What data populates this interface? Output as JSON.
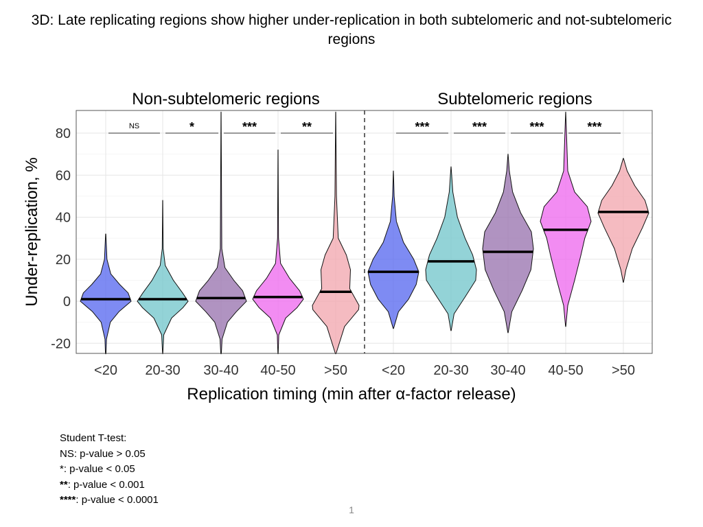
{
  "slide": {
    "title": "3D: Late replicating regions show higher under-replication in both subtelomeric and not-subtelomeric regions",
    "page_number": "1"
  },
  "legend_note": {
    "heading": "Student T-test:",
    "lines": [
      {
        "symbol": "NS",
        "text": ": p-value > 0.05"
      },
      {
        "symbol": "*",
        "text": ": p-value < 0.05"
      },
      {
        "symbol": "**",
        "text": ": p-value < 0.001"
      },
      {
        "symbol": "****",
        "text": ": p-value < 0.0001"
      }
    ]
  },
  "colors": {
    "<20": "#5a6af0",
    "20-30": "#74c7cc",
    "30-40": "#9a74b0",
    "40-50": "#ee6cee",
    "50+": "#f2a8b0",
    "median": "#000000",
    "grid": "#e6e6e6"
  },
  "chart_data": {
    "type": "violin",
    "xlabel": "Replication timing (min after α-factor release)",
    "ylabel": "Under-replication, %",
    "ylim": [
      -25,
      90
    ],
    "yticks": [
      -20,
      0,
      20,
      40,
      60,
      80
    ],
    "grid": true,
    "panels": [
      {
        "title": "Non-subtelomeric regions",
        "categories": [
          "<20",
          "20-30",
          "30-40",
          "40-50",
          ">50"
        ],
        "violins": [
          {
            "category": "<20",
            "min": -25,
            "max": 32,
            "median": 1,
            "widths": [
              [
                -25,
                0.01
              ],
              [
                -18,
                0.03
              ],
              [
                -10,
                0.18
              ],
              [
                -5,
                0.52
              ],
              [
                0,
                1
              ],
              [
                4,
                0.88
              ],
              [
                8,
                0.55
              ],
              [
                13,
                0.2
              ],
              [
                20,
                0.05
              ],
              [
                32,
                0.005
              ]
            ]
          },
          {
            "category": "20-30",
            "min": -25,
            "max": 48,
            "median": 1,
            "widths": [
              [
                -25,
                0.005
              ],
              [
                -16,
                0.04
              ],
              [
                -8,
                0.35
              ],
              [
                -3,
                0.8
              ],
              [
                0,
                1
              ],
              [
                4,
                0.78
              ],
              [
                10,
                0.42
              ],
              [
                17,
                0.1
              ],
              [
                25,
                0.02
              ],
              [
                48,
                0.003
              ]
            ]
          },
          {
            "category": "30-40",
            "min": -25,
            "max": 90,
            "median": 1.5,
            "widths": [
              [
                -25,
                0.01
              ],
              [
                -18,
                0.04
              ],
              [
                -10,
                0.25
              ],
              [
                -5,
                0.6
              ],
              [
                0,
                1
              ],
              [
                5,
                0.85
              ],
              [
                10,
                0.5
              ],
              [
                16,
                0.15
              ],
              [
                25,
                0.03
              ],
              [
                90,
                0.002
              ]
            ]
          },
          {
            "category": "40-50",
            "min": -25,
            "max": 72,
            "median": 2,
            "widths": [
              [
                -25,
                0.005
              ],
              [
                -16,
                0.03
              ],
              [
                -8,
                0.3
              ],
              [
                -3,
                0.75
              ],
              [
                1,
                1
              ],
              [
                5,
                0.85
              ],
              [
                11,
                0.45
              ],
              [
                18,
                0.1
              ],
              [
                30,
                0.02
              ],
              [
                72,
                0.002
              ]
            ]
          },
          {
            "category": ">50",
            "min": -25,
            "max": 90,
            "median": 4.5,
            "widths": [
              [
                -25,
                0.01
              ],
              [
                -12,
                0.35
              ],
              [
                -4,
                0.9
              ],
              [
                -2,
                0.92
              ],
              [
                6,
                0.55
              ],
              [
                15,
                0.58
              ],
              [
                22,
                0.42
              ],
              [
                30,
                0.1
              ],
              [
                50,
                0.03
              ],
              [
                90,
                0.002
              ]
            ]
          }
        ],
        "significance": [
          {
            "between": [
              "<20",
              "20-30"
            ],
            "label": "NS"
          },
          {
            "between": [
              "20-30",
              "30-40"
            ],
            "label": "*"
          },
          {
            "between": [
              "30-40",
              "40-50"
            ],
            "label": "***"
          },
          {
            "between": [
              "40-50",
              ">50"
            ],
            "label": "**"
          }
        ]
      },
      {
        "title": "Subtelomeric regions",
        "categories": [
          "<20",
          "20-30",
          "30-40",
          "40-50",
          ">50"
        ],
        "violins": [
          {
            "category": "<20",
            "min": -13,
            "max": 62,
            "median": 14,
            "widths": [
              [
                -13,
                0.005
              ],
              [
                -5,
                0.2
              ],
              [
                1,
                0.6
              ],
              [
                8,
                0.9
              ],
              [
                14,
                1
              ],
              [
                20,
                0.8
              ],
              [
                28,
                0.4
              ],
              [
                38,
                0.12
              ],
              [
                50,
                0.03
              ],
              [
                62,
                0.003
              ]
            ]
          },
          {
            "category": "20-30",
            "min": -14,
            "max": 64,
            "median": 19,
            "widths": [
              [
                -14,
                0.005
              ],
              [
                -6,
                0.12
              ],
              [
                2,
                0.55
              ],
              [
                10,
                0.97
              ],
              [
                15,
                1
              ],
              [
                22,
                0.85
              ],
              [
                30,
                0.55
              ],
              [
                40,
                0.25
              ],
              [
                52,
                0.07
              ],
              [
                64,
                0.003
              ]
            ]
          },
          {
            "category": "30-40",
            "min": -15,
            "max": 70,
            "median": 23.5,
            "widths": [
              [
                -15,
                0.005
              ],
              [
                -5,
                0.15
              ],
              [
                5,
                0.55
              ],
              [
                15,
                0.9
              ],
              [
                25,
                1
              ],
              [
                33,
                0.92
              ],
              [
                42,
                0.5
              ],
              [
                52,
                0.18
              ],
              [
                62,
                0.05
              ],
              [
                70,
                0.003
              ]
            ]
          },
          {
            "category": "40-50",
            "min": -12,
            "max": 90,
            "median": 34,
            "widths": [
              [
                -12,
                0.005
              ],
              [
                -2,
                0.08
              ],
              [
                10,
                0.35
              ],
              [
                22,
                0.6
              ],
              [
                30,
                0.75
              ],
              [
                38,
                1
              ],
              [
                45,
                0.85
              ],
              [
                52,
                0.35
              ],
              [
                62,
                0.08
              ],
              [
                90,
                0.002
              ]
            ]
          },
          {
            "category": ">50",
            "min": 9,
            "max": 68,
            "median": 42.5,
            "widths": [
              [
                9,
                0.005
              ],
              [
                15,
                0.1
              ],
              [
                25,
                0.35
              ],
              [
                35,
                0.75
              ],
              [
                42,
                1
              ],
              [
                48,
                0.85
              ],
              [
                55,
                0.45
              ],
              [
                62,
                0.15
              ],
              [
                68,
                0.005
              ]
            ]
          }
        ],
        "significance": [
          {
            "between": [
              "<20",
              "20-30"
            ],
            "label": "***"
          },
          {
            "between": [
              "20-30",
              "30-40"
            ],
            "label": "***"
          },
          {
            "between": [
              "30-40",
              "40-50"
            ],
            "label": "***"
          },
          {
            "between": [
              "40-50",
              ">50"
            ],
            "label": "***"
          }
        ]
      }
    ]
  }
}
